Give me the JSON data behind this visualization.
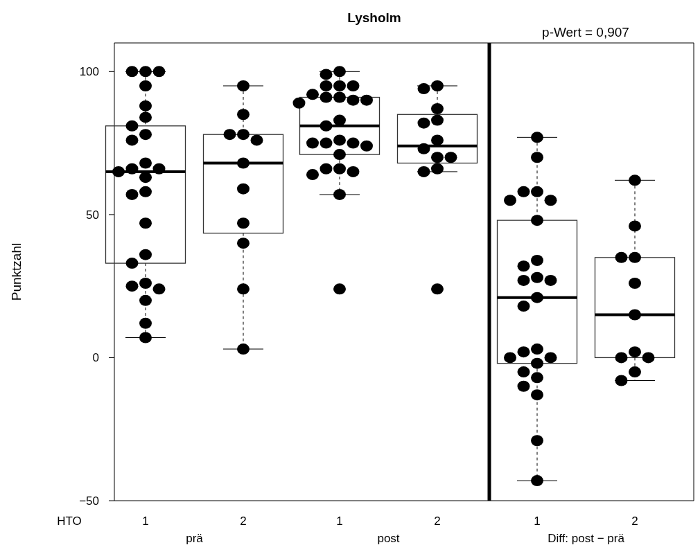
{
  "chart_data": [
    {
      "type": "box",
      "ylabel": "Punktzahl",
      "xlabel": "prä",
      "annotations": [
        "HTO"
      ],
      "categories": [
        "1",
        "2"
      ],
      "ylim": [
        -50,
        110
      ],
      "yticks": [
        -50,
        0,
        50,
        100
      ],
      "grid": false,
      "marker": "circle",
      "boxes": [
        {
          "low": 7,
          "q1": 33,
          "median": 65,
          "q3": 81,
          "high": 100
        },
        {
          "low": 3,
          "q1": 43.5,
          "median": 68,
          "q3": 78,
          "high": 95
        }
      ],
      "series": [
        {
          "type": "scatter",
          "color": "#000000",
          "x": [
            "1",
            "1",
            "1",
            "1",
            "1",
            "1",
            "1",
            "1",
            "1",
            "1",
            "1",
            "1",
            "1",
            "1",
            "1",
            "1",
            "1",
            "1",
            "1",
            "1",
            "1",
            "1",
            "1",
            "1",
            "1"
          ],
          "values": [
            100,
            100,
            100,
            95,
            88,
            84,
            81,
            78,
            76,
            68,
            66,
            66,
            65,
            63,
            58,
            57,
            47,
            36,
            33,
            26,
            25,
            24,
            20,
            12,
            7
          ]
        },
        {
          "type": "scatter",
          "color": "#000000",
          "x": [
            "2",
            "2",
            "2",
            "2",
            "2",
            "2",
            "2",
            "2",
            "2",
            "2",
            "2"
          ],
          "values": [
            95,
            85,
            78,
            78,
            76,
            68,
            59,
            47,
            40,
            24,
            3
          ]
        }
      ]
    },
    {
      "type": "box",
      "title": "Lysholm",
      "xlabel": "post",
      "tick_labels": "x",
      "categories": [
        "1",
        "2"
      ],
      "ylim": [
        -50,
        110
      ],
      "grid": false,
      "marker": "circle",
      "boxes": [
        {
          "low": 57,
          "q1": 71,
          "median": 81,
          "q3": 91,
          "high": 100,
          "outliers": [
            24
          ]
        },
        {
          "low": 65,
          "q1": 68,
          "median": 74,
          "q3": 85,
          "high": 95,
          "outliers": [
            24
          ]
        }
      ],
      "series": [
        {
          "type": "scatter",
          "color": "#000000",
          "x": [
            "1",
            "1",
            "1",
            "1",
            "1",
            "1",
            "1",
            "1",
            "1",
            "1",
            "1",
            "1",
            "1",
            "1",
            "1",
            "1",
            "1",
            "1",
            "1",
            "1",
            "1",
            "1",
            "1",
            "1"
          ],
          "values": [
            100,
            99,
            95,
            95,
            95,
            92,
            91,
            91,
            90,
            90,
            89,
            83,
            81,
            76,
            75,
            75,
            75,
            74,
            71,
            66,
            66,
            65,
            64,
            57
          ]
        },
        {
          "type": "scatter",
          "color": "#000000",
          "x": [
            "2",
            "2",
            "2",
            "2",
            "2",
            "2",
            "2",
            "2",
            "2",
            "2",
            "2"
          ],
          "values": [
            95,
            94,
            87,
            83,
            82,
            76,
            73,
            70,
            70,
            66,
            65
          ]
        }
      ]
    },
    {
      "type": "box",
      "xlabel": "Diff: post − prä",
      "annotations": [
        "p-Wert = 0,907"
      ],
      "tick_labels": "x",
      "categories": [
        "1",
        "2"
      ],
      "ylim": [
        -50,
        110
      ],
      "grid": false,
      "marker": "circle",
      "boxes": [
        {
          "low": -43,
          "q1": -2,
          "median": 21,
          "q3": 48,
          "high": 77
        },
        {
          "low": -8,
          "q1": 0,
          "median": 15,
          "q3": 35,
          "high": 62
        }
      ],
      "series": [
        {
          "type": "scatter",
          "color": "#000000",
          "x": [
            "1",
            "1",
            "1",
            "1",
            "1",
            "1",
            "1",
            "1",
            "1",
            "1",
            "1",
            "1",
            "1",
            "1",
            "1",
            "1",
            "1",
            "1",
            "1",
            "1",
            "1",
            "1",
            "1",
            "1",
            "1"
          ],
          "values": [
            77,
            70,
            58,
            58,
            55,
            55,
            48,
            34,
            32,
            28,
            27,
            27,
            21,
            18,
            3,
            2,
            0,
            0,
            -2,
            -5,
            -7,
            -10,
            -13,
            -29,
            -43
          ]
        },
        {
          "type": "scatter",
          "color": "#000000",
          "x": [
            "2",
            "2",
            "2",
            "2",
            "2",
            "2",
            "2",
            "2",
            "2",
            "2",
            "2"
          ],
          "values": [
            62,
            46,
            35,
            35,
            26,
            15,
            2,
            0,
            0,
            -5,
            -8
          ]
        }
      ]
    }
  ]
}
